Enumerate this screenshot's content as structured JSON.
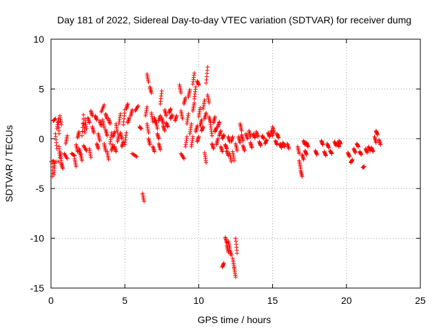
{
  "chart_data": {
    "type": "scatter",
    "title": "Day 181 of 2022, Sidereal Day-to-day VTEC variation (SDTVAR) for receiver dumg",
    "xlabel": "GPS time / hours",
    "ylabel": "SDTVAR / TECUs",
    "xlim": [
      0,
      25
    ],
    "ylim": [
      -15,
      10
    ],
    "xticks": [
      0,
      5,
      10,
      15,
      20,
      25
    ],
    "yticks": [
      -15,
      -10,
      -5,
      0,
      5,
      10
    ],
    "xtick_labels": [
      "0",
      "5",
      "10",
      "15",
      "20",
      "25"
    ],
    "ytick_labels": [
      "-15",
      "-10",
      "-5",
      "0",
      "5",
      "10"
    ],
    "grid": true,
    "marker": "+",
    "series": [
      {
        "name": "SDTVAR",
        "color": "#ff0000",
        "segments": [
          [
            0.0,
            -2.3,
            0.5,
            -2.3
          ],
          [
            0.1,
            -3.8,
            0.15,
            -2.2
          ],
          [
            0.2,
            -3.6,
            0.25,
            -2.5
          ],
          [
            0.15,
            1.8,
            0.3,
            2.0
          ],
          [
            0.3,
            0.5,
            0.4,
            -1.0
          ],
          [
            0.4,
            1.0,
            0.5,
            2.0
          ],
          [
            0.5,
            2.0,
            0.55,
            0.5
          ],
          [
            0.55,
            -0.8,
            0.6,
            -1.9
          ],
          [
            0.65,
            -1.4,
            0.7,
            -2.4
          ],
          [
            0.6,
            2.3,
            0.7,
            1.4
          ],
          [
            0.7,
            -2.5,
            0.8,
            -3.0
          ],
          [
            0.9,
            -1.5,
            1.1,
            -2.0
          ],
          [
            1.0,
            -0.5,
            1.1,
            0.3
          ],
          [
            1.4,
            -1.5,
            1.6,
            -1.7
          ],
          [
            1.6,
            -2.0,
            1.7,
            -2.8
          ],
          [
            1.7,
            -0.6,
            1.8,
            -1.3
          ],
          [
            1.8,
            0.1,
            1.9,
            0.7
          ],
          [
            1.9,
            -1.0,
            2.0,
            -1.6
          ],
          [
            2.0,
            -1.5,
            2.1,
            -2.2
          ],
          [
            2.1,
            0.3,
            2.2,
            2.4
          ],
          [
            2.2,
            1.5,
            2.3,
            0.6
          ],
          [
            2.3,
            2.0,
            2.4,
            1.0
          ],
          [
            2.2,
            -0.7,
            2.4,
            -1.2
          ],
          [
            2.5,
            2.1,
            2.6,
            1.6
          ],
          [
            2.6,
            -1.0,
            2.7,
            -1.9
          ],
          [
            2.7,
            2.8,
            2.8,
            2.3
          ],
          [
            2.8,
            1.2,
            2.9,
            0.6
          ],
          [
            3.0,
            2.3,
            3.1,
            1.9
          ],
          [
            3.1,
            -0.5,
            3.2,
            -1.0
          ],
          [
            3.2,
            0.5,
            3.3,
            -0.2
          ],
          [
            3.3,
            1.8,
            3.4,
            1.3
          ],
          [
            3.4,
            2.7,
            3.6,
            3.4
          ],
          [
            3.5,
            1.9,
            3.6,
            1.1
          ],
          [
            3.6,
            -0.5,
            3.7,
            -1.2
          ],
          [
            3.7,
            2.5,
            3.8,
            2.0
          ],
          [
            3.7,
            0.9,
            3.8,
            0.3
          ],
          [
            3.8,
            -1.3,
            3.9,
            -2.1
          ],
          [
            3.9,
            2.0,
            4.0,
            1.5
          ],
          [
            4.0,
            -0.5,
            4.1,
            0.6
          ],
          [
            4.1,
            -1.2,
            4.2,
            -0.6
          ],
          [
            4.2,
            0.2,
            4.3,
            0.7
          ],
          [
            4.3,
            -0.8,
            4.4,
            -1.3
          ],
          [
            4.4,
            1.5,
            4.5,
            0.6
          ],
          [
            4.5,
            -0.3,
            4.6,
            0.4
          ],
          [
            4.6,
            1.5,
            4.7,
            2.5
          ],
          [
            4.7,
            0.6,
            4.8,
            0.0
          ],
          [
            4.8,
            -0.8,
            4.9,
            -0.3
          ],
          [
            4.9,
            1.4,
            5.0,
            2.9
          ],
          [
            5.0,
            -0.6,
            5.1,
            0.6
          ],
          [
            5.1,
            3.0,
            5.2,
            3.5
          ],
          [
            5.2,
            1.6,
            5.3,
            2.1
          ],
          [
            5.4,
            2.3,
            5.5,
            2.9
          ],
          [
            5.5,
            -1.5,
            5.8,
            -1.8
          ],
          [
            5.7,
            2.8,
            5.9,
            3.3
          ],
          [
            6.0,
            1.2,
            6.1,
            1.0
          ],
          [
            6.2,
            -5.5,
            6.3,
            -6.3
          ],
          [
            6.4,
            2.3,
            6.5,
            3.2
          ],
          [
            6.5,
            1.5,
            6.6,
            0.6
          ],
          [
            6.6,
            0.0,
            6.7,
            -0.6
          ],
          [
            6.5,
            6.5,
            6.6,
            5.7
          ],
          [
            6.7,
            5.2,
            6.8,
            4.6
          ],
          [
            6.8,
            2.6,
            6.9,
            1.7
          ],
          [
            6.9,
            -0.8,
            7.0,
            -1.3
          ],
          [
            7.0,
            2.1,
            7.1,
            1.5
          ],
          [
            7.1,
            1.8,
            7.2,
            1.0
          ],
          [
            7.2,
            0.5,
            7.3,
            0.0
          ],
          [
            7.3,
            -0.5,
            7.4,
            -1.1
          ],
          [
            7.3,
            1.8,
            7.4,
            2.3
          ],
          [
            7.4,
            3.5,
            7.5,
            4.8
          ],
          [
            7.5,
            2.1,
            7.6,
            1.5
          ],
          [
            7.6,
            1.3,
            7.7,
            0.8
          ],
          [
            7.7,
            2.9,
            7.8,
            2.3
          ],
          [
            7.8,
            1.6,
            7.9,
            1.2
          ],
          [
            8.0,
            2.6,
            8.1,
            3.0
          ],
          [
            8.1,
            2.0,
            8.2,
            2.4
          ],
          [
            8.4,
            1.8,
            8.5,
            2.3
          ],
          [
            8.7,
            5.4,
            8.8,
            4.6
          ],
          [
            8.8,
            2.8,
            8.9,
            2.0
          ],
          [
            8.8,
            -1.5,
            9.0,
            -2.0
          ],
          [
            9.0,
            3.5,
            9.1,
            4.1
          ],
          [
            9.1,
            -0.8,
            9.2,
            0.2
          ],
          [
            9.2,
            1.5,
            9.3,
            2.5
          ],
          [
            9.3,
            4.2,
            9.4,
            4.9
          ],
          [
            9.4,
            0.5,
            9.5,
            1.5
          ],
          [
            9.5,
            -0.8,
            9.6,
            0.2
          ],
          [
            9.6,
            2.8,
            9.7,
            3.6
          ],
          [
            9.6,
            5.5,
            9.7,
            6.6
          ],
          [
            9.7,
            4.0,
            9.8,
            5.2
          ],
          [
            9.8,
            0.7,
            9.9,
            1.3
          ],
          [
            9.9,
            -0.3,
            10.0,
            0.2
          ],
          [
            9.9,
            5.8,
            10.0,
            5.4
          ],
          [
            10.0,
            2.2,
            10.1,
            3.1
          ],
          [
            10.1,
            1.3,
            10.2,
            1.9
          ],
          [
            10.2,
            0.8,
            10.3,
            1.2
          ],
          [
            10.3,
            3.0,
            10.4,
            3.9
          ],
          [
            10.4,
            2.0,
            10.5,
            2.6
          ],
          [
            10.5,
            5.6,
            10.6,
            7.2
          ],
          [
            10.4,
            -1.4,
            10.5,
            -2.4
          ],
          [
            10.6,
            4.4,
            10.7,
            3.6
          ],
          [
            10.7,
            2.2,
            10.8,
            1.6
          ],
          [
            10.8,
            1.4,
            10.9,
            0.3
          ],
          [
            10.9,
            -0.5,
            11.0,
            -1.0
          ],
          [
            11.0,
            1.6,
            11.1,
            2.2
          ],
          [
            11.1,
            0.7,
            11.2,
            1.1
          ],
          [
            11.2,
            -0.6,
            11.3,
            0.0
          ],
          [
            11.3,
            1.2,
            11.4,
            1.7
          ],
          [
            11.4,
            0.3,
            11.5,
            0.8
          ],
          [
            11.5,
            -0.8,
            11.6,
            -1.3
          ],
          [
            11.6,
            0.0,
            11.7,
            0.4
          ],
          [
            11.6,
            -12.9,
            11.7,
            -12.5
          ],
          [
            11.8,
            -9.9,
            11.9,
            -10.5
          ],
          [
            11.9,
            -10.7,
            12.0,
            -11.4
          ],
          [
            12.0,
            -10.3,
            12.1,
            -11.0
          ],
          [
            12.1,
            -11.2,
            12.2,
            -11.7
          ],
          [
            11.8,
            -0.6,
            11.9,
            -1.0
          ],
          [
            11.9,
            -1.2,
            12.0,
            -1.7
          ],
          [
            12.0,
            0.2,
            12.1,
            -0.3
          ],
          [
            12.1,
            -1.5,
            12.2,
            -2.3
          ],
          [
            12.2,
            -0.3,
            12.3,
            0.2
          ],
          [
            12.3,
            -12.0,
            12.4,
            -12.9
          ],
          [
            12.4,
            -13.0,
            12.5,
            -13.9
          ],
          [
            12.5,
            -10.0,
            12.6,
            -11.5
          ],
          [
            12.3,
            -1.3,
            12.4,
            -2.2
          ],
          [
            12.5,
            -0.5,
            12.6,
            -1.2
          ],
          [
            12.7,
            0.2,
            12.8,
            -0.4
          ],
          [
            12.8,
            1.5,
            12.9,
            0.8
          ],
          [
            12.9,
            0.4,
            13.0,
            -0.2
          ],
          [
            13.0,
            -0.7,
            13.1,
            -1.2
          ],
          [
            13.2,
            0.5,
            13.3,
            0.0
          ],
          [
            13.4,
            0.8,
            13.5,
            0.2
          ],
          [
            13.5,
            -0.4,
            13.6,
            -0.9
          ],
          [
            13.7,
            0.5,
            13.8,
            0.1
          ],
          [
            13.9,
            0.7,
            14.0,
            0.2
          ],
          [
            14.1,
            -0.3,
            14.2,
            -0.7
          ],
          [
            14.3,
            0.3,
            14.4,
            0.0
          ],
          [
            14.5,
            -0.5,
            14.6,
            -0.1
          ],
          [
            14.7,
            0.6,
            14.8,
            0.2
          ],
          [
            14.9,
            0.8,
            15.0,
            0.3
          ],
          [
            15.0,
            1.2,
            15.1,
            0.6
          ],
          [
            15.2,
            -0.2,
            15.3,
            -0.6
          ],
          [
            15.3,
            0.5,
            15.4,
            0.1
          ],
          [
            15.5,
            -0.5,
            15.6,
            -0.9
          ],
          [
            15.7,
            -0.4,
            15.8,
            -0.8
          ],
          [
            16.0,
            -0.5,
            16.1,
            -1.0
          ],
          [
            16.7,
            -0.8,
            16.8,
            -1.5
          ],
          [
            16.8,
            -2.2,
            16.9,
            -3.0
          ],
          [
            16.9,
            -3.2,
            17.0,
            -3.8
          ],
          [
            17.0,
            -1.6,
            17.1,
            -2.1
          ],
          [
            17.1,
            -0.2,
            17.2,
            -0.6
          ],
          [
            17.2,
            -1.2,
            17.3,
            -1.6
          ],
          [
            17.3,
            -0.4,
            17.4,
            -0.8
          ],
          [
            17.9,
            -1.2,
            18.0,
            -1.6
          ],
          [
            18.3,
            -0.2,
            18.4,
            -0.6
          ],
          [
            18.5,
            -1.3,
            18.6,
            -1.7
          ],
          [
            18.7,
            -0.5,
            18.8,
            -0.9
          ],
          [
            18.9,
            -1.2,
            19.0,
            -1.5
          ],
          [
            19.2,
            -0.3,
            19.3,
            -0.7
          ],
          [
            19.4,
            -0.4,
            19.5,
            -0.8
          ],
          [
            19.5,
            -0.2,
            19.6,
            -0.5
          ],
          [
            20.1,
            -1.4,
            20.2,
            -1.8
          ],
          [
            20.3,
            -2.4,
            20.4,
            -2.1
          ],
          [
            20.5,
            -1.0,
            20.6,
            -1.4
          ],
          [
            20.7,
            -0.5,
            20.8,
            -0.8
          ],
          [
            20.9,
            -1.3,
            21.0,
            -1.6
          ],
          [
            21.1,
            -2.9,
            21.2,
            -2.8
          ],
          [
            21.3,
            -1.0,
            21.4,
            -1.4
          ],
          [
            21.5,
            -0.8,
            21.6,
            -1.2
          ],
          [
            21.7,
            -0.9,
            21.8,
            -1.3
          ],
          [
            21.9,
            0.2,
            22.0,
            -0.4
          ],
          [
            22.0,
            0.8,
            22.1,
            0.4
          ],
          [
            22.2,
            -0.1,
            22.3,
            -0.6
          ]
        ]
      }
    ]
  }
}
